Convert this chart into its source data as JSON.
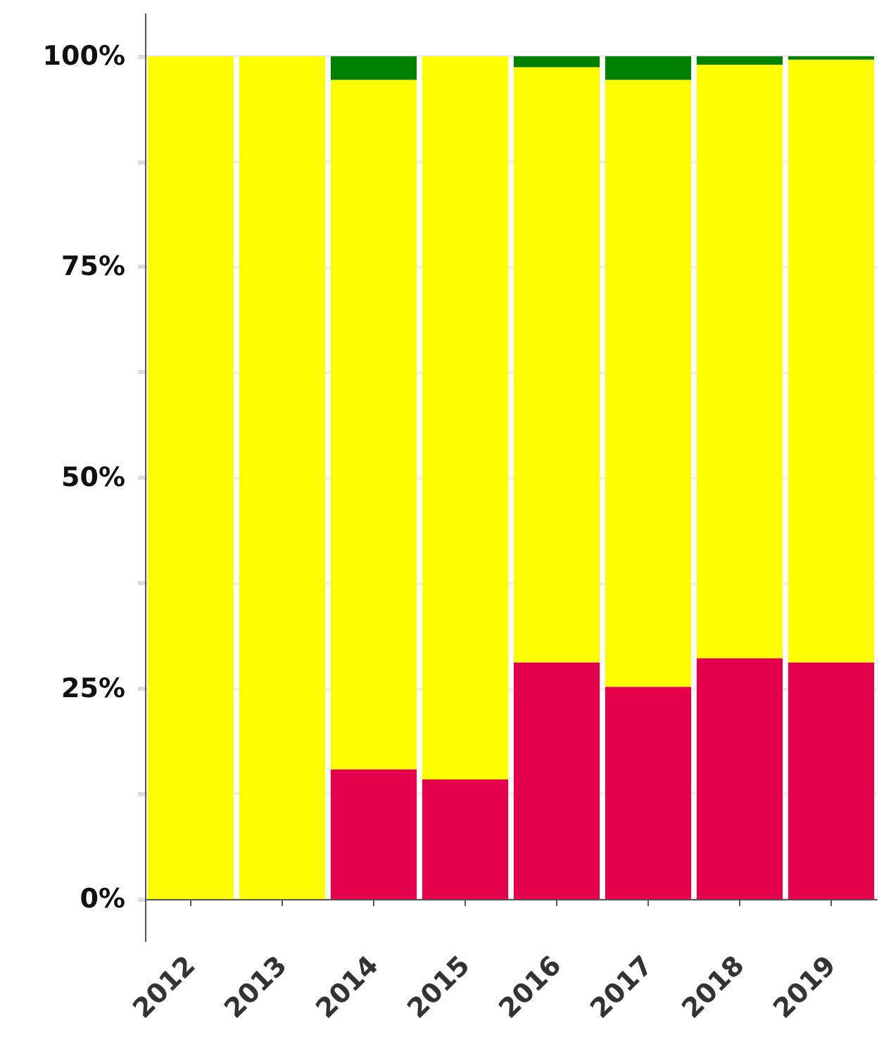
{
  "chart_data": {
    "type": "bar",
    "stacked": true,
    "categories": [
      "2012",
      "2013",
      "2014",
      "2015",
      "2016",
      "2017",
      "2018",
      "2019"
    ],
    "series": [
      {
        "color": "#e4004b",
        "values": [
          0,
          0,
          15.4,
          14.2,
          28.1,
          25.2,
          28.6,
          28.1
        ]
      },
      {
        "color": "#ffff00",
        "values": [
          100,
          100,
          81.8,
          85.8,
          70.6,
          72.0,
          70.4,
          71.5
        ]
      },
      {
        "color": "#008000",
        "values": [
          0,
          0,
          2.8,
          0,
          1.3,
          2.8,
          1.0,
          0.4
        ]
      }
    ],
    "ylim": [
      -5,
      105
    ],
    "yticks": [
      {
        "value": 0,
        "label": "0%"
      },
      {
        "value": 12.5,
        "label": null
      },
      {
        "value": 25,
        "label": "25%"
      },
      {
        "value": 37.5,
        "label": null
      },
      {
        "value": 50,
        "label": "50%"
      },
      {
        "value": 62.5,
        "label": null
      },
      {
        "value": 75,
        "label": "75%"
      },
      {
        "value": 87.5,
        "label": null
      },
      {
        "value": 100,
        "label": "100%"
      }
    ],
    "grid": "y"
  }
}
